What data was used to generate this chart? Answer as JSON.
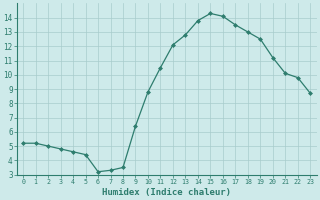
{
  "x": [
    0,
    1,
    2,
    3,
    4,
    5,
    6,
    7,
    8,
    9,
    10,
    11,
    12,
    13,
    14,
    15,
    16,
    17,
    18,
    19,
    20,
    21,
    22,
    23
  ],
  "y": [
    5.2,
    5.2,
    5.0,
    4.8,
    4.6,
    4.4,
    3.2,
    3.3,
    3.5,
    6.4,
    8.8,
    10.5,
    12.1,
    12.8,
    13.8,
    14.3,
    14.1,
    13.5,
    13.0,
    12.5,
    11.2,
    10.1,
    9.8,
    8.7
  ],
  "xlabel": "Humidex (Indice chaleur)",
  "ylim": [
    3,
    15
  ],
  "xlim": [
    -0.5,
    23.5
  ],
  "line_color": "#2e7d6e",
  "marker": "D",
  "marker_size": 2.0,
  "bg_color": "#ceeaea",
  "grid_color": "#a8cccc",
  "tick_color": "#2e7d6e",
  "label_color": "#2e7d6e",
  "yticks": [
    3,
    4,
    5,
    6,
    7,
    8,
    9,
    10,
    11,
    12,
    13,
    14
  ],
  "xticks": [
    0,
    1,
    2,
    3,
    4,
    5,
    6,
    7,
    8,
    9,
    10,
    11,
    12,
    13,
    14,
    15,
    16,
    17,
    18,
    19,
    20,
    21,
    22,
    23
  ]
}
